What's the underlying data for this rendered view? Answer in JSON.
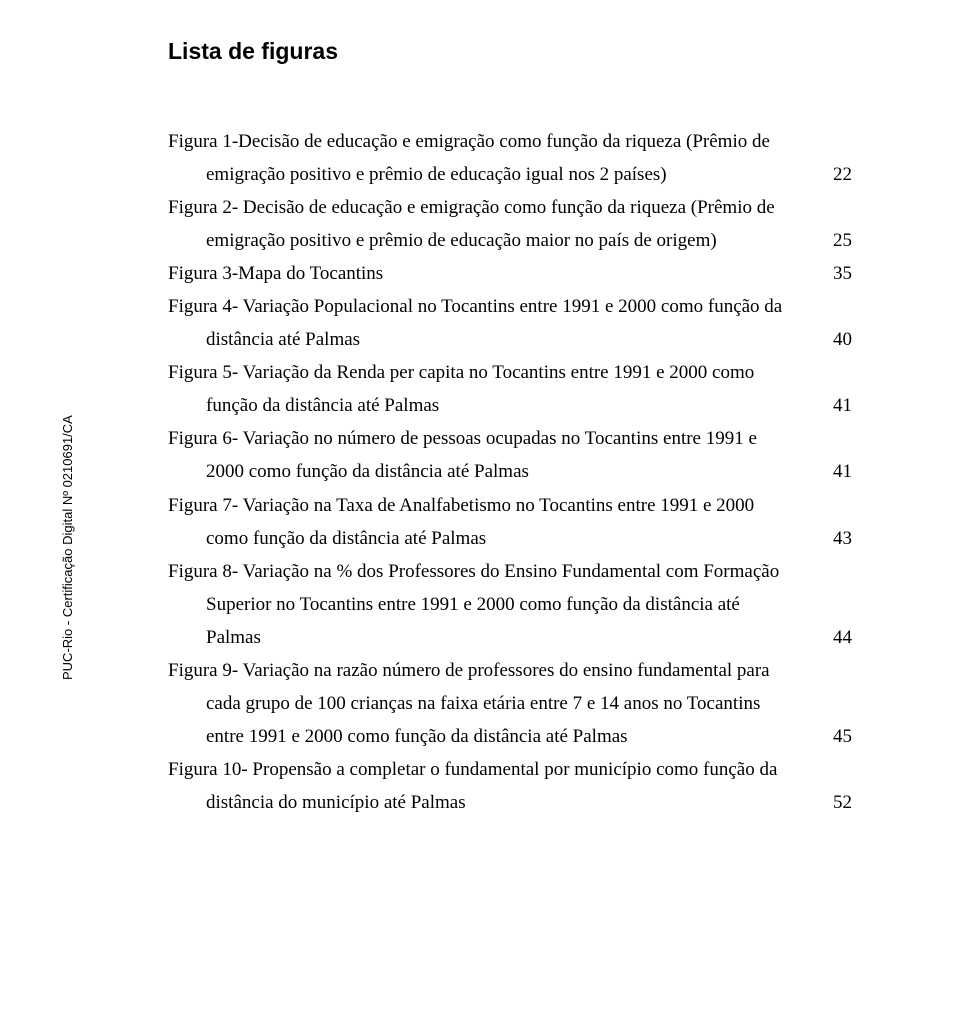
{
  "heading": "Lista de figuras",
  "sidetext": "PUC-Rio - Certificação Digital Nº 0210691/CA",
  "entries": [
    {
      "lines": [
        {
          "text": "Figura 1-Decisão de educação e emigração como função da riqueza (Prêmio de",
          "indent": false
        },
        {
          "text": "emigração positivo e prêmio de educação igual nos 2 países)",
          "indent": true,
          "page": "22"
        }
      ]
    },
    {
      "lines": [
        {
          "text": "Figura 2- Decisão de educação e emigração como função da riqueza (Prêmio de",
          "indent": false
        },
        {
          "text": "emigração positivo e prêmio de educação maior no país de origem)",
          "indent": true,
          "page": "25"
        }
      ]
    },
    {
      "lines": [
        {
          "text": "Figura 3-Mapa do Tocantins",
          "indent": false,
          "page": "35"
        }
      ]
    },
    {
      "lines": [
        {
          "text": "Figura 4- Variação Populacional no Tocantins entre 1991 e 2000 como função da",
          "indent": false
        },
        {
          "text": "distância até Palmas",
          "indent": true,
          "page": "40"
        }
      ]
    },
    {
      "lines": [
        {
          "text": "Figura 5- Variação da Renda per capita no Tocantins entre 1991 e 2000 como",
          "indent": false
        },
        {
          "text": "função da distância até Palmas",
          "indent": true,
          "page": "41"
        }
      ]
    },
    {
      "lines": [
        {
          "text": "Figura 6- Variação no número de pessoas ocupadas no Tocantins entre 1991 e",
          "indent": false
        },
        {
          "text": "2000 como função da distância até Palmas",
          "indent": true,
          "page": "41"
        }
      ]
    },
    {
      "lines": [
        {
          "text": "Figura 7- Variação na Taxa de Analfabetismo no Tocantins entre 1991 e 2000",
          "indent": false
        },
        {
          "text": "como função da distância até Palmas",
          "indent": true,
          "page": "43"
        }
      ]
    },
    {
      "lines": [
        {
          "text": "Figura 8- Variação na % dos Professores do Ensino Fundamental com Formação",
          "indent": false
        },
        {
          "text": "Superior no Tocantins entre 1991 e 2000 como função da distância até",
          "indent": true
        },
        {
          "text": "Palmas",
          "indent": true,
          "page": "44"
        }
      ]
    },
    {
      "lines": [
        {
          "text": "Figura 9- Variação na razão número de professores do ensino fundamental para",
          "indent": false
        },
        {
          "text": "cada grupo de 100 crianças na faixa etária entre 7 e 14 anos  no Tocantins",
          "indent": true
        },
        {
          "text": "entre 1991 e 2000 como função da distância até Palmas",
          "indent": true,
          "page": "45"
        }
      ]
    },
    {
      "lines": [
        {
          "text": "Figura 10- Propensão a completar o fundamental por município como função da",
          "indent": false
        },
        {
          "text": "distância do município até Palmas",
          "indent": true,
          "page": "52"
        }
      ]
    }
  ]
}
